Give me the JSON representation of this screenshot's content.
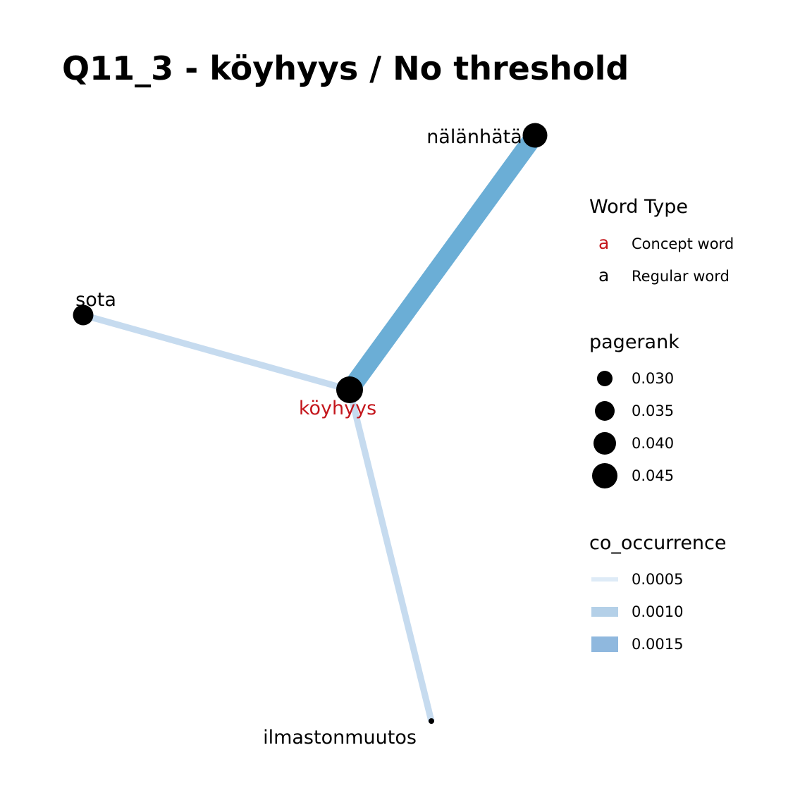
{
  "title": "Q11_3 - köyhyys / No threshold",
  "colors": {
    "concept": "#c4161c",
    "regular": "#000000",
    "edge_scale": [
      "#deebf7",
      "#c6dbef",
      "#9ecae1",
      "#6baed6"
    ]
  },
  "nodes": [
    {
      "id": "nälänhätä",
      "label": "nälänhätä",
      "type": "regular",
      "pagerank": 0.044
    },
    {
      "id": "sota",
      "label": "sota",
      "type": "regular",
      "pagerank": 0.04
    },
    {
      "id": "köyhyys",
      "label": "köyhyys",
      "type": "concept",
      "pagerank": 0.046
    },
    {
      "id": "ilmastonmuutos",
      "label": "ilmastonmuutos",
      "type": "regular",
      "pagerank": 0.026
    }
  ],
  "edges": [
    {
      "from": "köyhyys",
      "to": "nälänhätä",
      "co_occurrence": 0.0017
    },
    {
      "from": "köyhyys",
      "to": "sota",
      "co_occurrence": 0.0006
    },
    {
      "from": "köyhyys",
      "to": "ilmastonmuutos",
      "co_occurrence": 0.0006
    }
  ],
  "legend": {
    "word_type": {
      "title": "Word Type",
      "items": [
        {
          "glyph": "a",
          "label": "Concept word",
          "type": "concept"
        },
        {
          "glyph": "a",
          "label": "Regular word",
          "type": "regular"
        }
      ]
    },
    "pagerank": {
      "title": "pagerank",
      "items": [
        {
          "label": "0.030",
          "value": 0.03
        },
        {
          "label": "0.035",
          "value": 0.035
        },
        {
          "label": "0.040",
          "value": 0.04
        },
        {
          "label": "0.045",
          "value": 0.045
        }
      ]
    },
    "co_occurrence": {
      "title": "co_occurrence",
      "items": [
        {
          "label": "0.0005",
          "value": 0.0005
        },
        {
          "label": "0.0010",
          "value": 0.001
        },
        {
          "label": "0.0015",
          "value": 0.0015
        }
      ]
    }
  }
}
